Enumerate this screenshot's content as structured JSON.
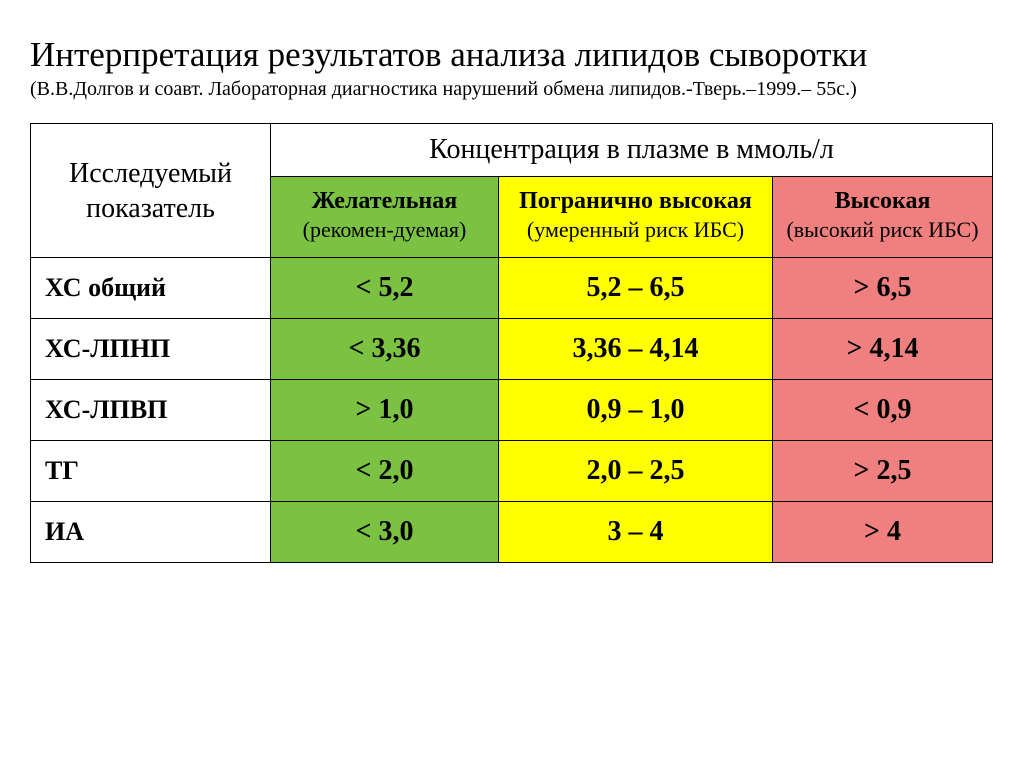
{
  "title": "Интерпретация результатов анализа липидов сыворотки",
  "subtitle": "(В.В.Долгов и соавт. Лабораторная диагностика нарушений обмена липидов.-Тверь.–1999.– 55с.)",
  "colors": {
    "green": "#7bc142",
    "yellow": "#ffff00",
    "red": "#f08080",
    "border": "#000000",
    "text": "#000000",
    "background": "#ffffff"
  },
  "header": {
    "param": "Исследуемый показатель",
    "top": "Концентрация в плазме в ммоль/л",
    "green": {
      "main": "Желательная",
      "sub": "(рекомен-дуемая)"
    },
    "yellow": {
      "main": "Погранично высокая",
      "sub": "(умеренный риск ИБС)"
    },
    "red": {
      "main": "Высокая",
      "sub": "(высокий риск ИБС)"
    }
  },
  "rows": [
    {
      "label": "ХС общий",
      "green": "< 5,2",
      "yellow": "5,2 – 6,5",
      "red": "> 6,5"
    },
    {
      "label": "ХС-ЛПНП",
      "green": "< 3,36",
      "yellow": "3,36 – 4,14",
      "red": "> 4,14"
    },
    {
      "label": "ХС-ЛПВП",
      "green": "> 1,0",
      "yellow": "0,9 – 1,0",
      "red": "< 0,9"
    },
    {
      "label": "ТГ",
      "green": "< 2,0",
      "yellow": "2,0 – 2,5",
      "red": "> 2,5"
    },
    {
      "label": "ИА",
      "green": "< 3,0",
      "yellow": "3 – 4",
      "red": "> 4"
    }
  ]
}
